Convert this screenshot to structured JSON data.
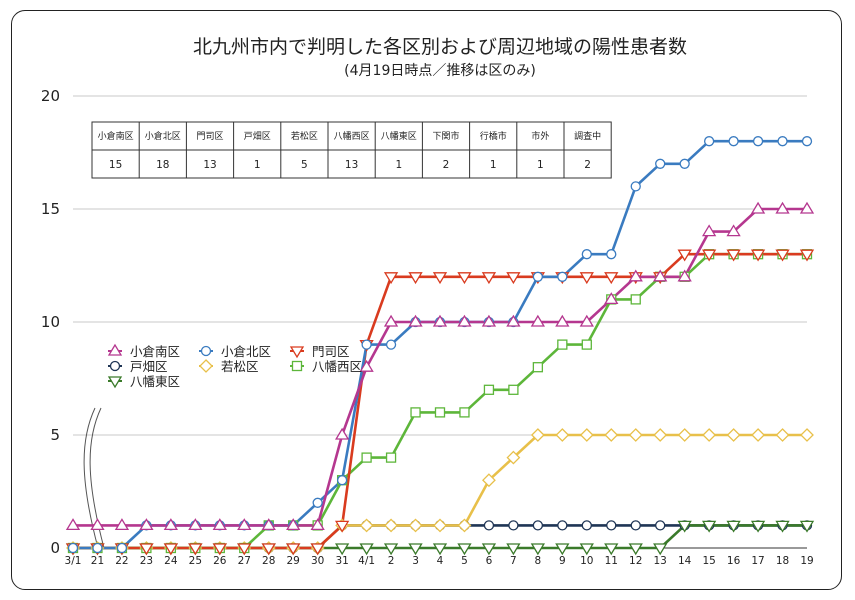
{
  "chart_data": {
    "type": "line",
    "title": "北九州市内で判明した各区別および周辺地域の陽性患者数",
    "subtitle": "(4月19日時点／推移は区のみ)",
    "xlabel": "",
    "ylabel": "",
    "ylim": [
      0,
      20
    ],
    "yticks": [
      "0",
      "5",
      "10",
      "15",
      "20"
    ],
    "x": [
      "3/1",
      "21",
      "22",
      "23",
      "24",
      "25",
      "26",
      "27",
      "28",
      "29",
      "30",
      "31",
      "4/1",
      "2",
      "3",
      "4",
      "5",
      "6",
      "7",
      "8",
      "9",
      "10",
      "11",
      "12",
      "13",
      "14",
      "15",
      "16",
      "17",
      "18",
      "19"
    ],
    "grid": true,
    "legend_position": "middle-left",
    "series": [
      {
        "name": "小倉南区",
        "color": "#b5378f",
        "marker": "triangle-up",
        "values": [
          1,
          1,
          1,
          1,
          1,
          1,
          1,
          1,
          1,
          1,
          1,
          5,
          8,
          10,
          10,
          10,
          10,
          10,
          10,
          10,
          10,
          10,
          11,
          12,
          12,
          12,
          14,
          14,
          15,
          15,
          15
        ]
      },
      {
        "name": "小倉北区",
        "color": "#3a7bc0",
        "marker": "circle",
        "values": [
          0,
          0,
          0,
          1,
          1,
          1,
          1,
          1,
          1,
          1,
          2,
          3,
          9,
          9,
          10,
          10,
          10,
          10,
          10,
          12,
          12,
          13,
          13,
          16,
          17,
          17,
          18,
          18,
          18,
          18,
          18
        ]
      },
      {
        "name": "門司区",
        "color": "#d93b1f",
        "marker": "triangle-down",
        "values": [
          0,
          0,
          0,
          0,
          0,
          0,
          0,
          0,
          0,
          0,
          0,
          1,
          9,
          12,
          12,
          12,
          12,
          12,
          12,
          12,
          12,
          12,
          12,
          12,
          12,
          13,
          13,
          13,
          13,
          13,
          13
        ]
      },
      {
        "name": "戸畑区",
        "color": "#1f3555",
        "marker": "circle",
        "values": [
          0,
          0,
          0,
          0,
          0,
          0,
          0,
          0,
          0,
          0,
          0,
          1,
          1,
          1,
          1,
          1,
          1,
          1,
          1,
          1,
          1,
          1,
          1,
          1,
          1,
          1,
          1,
          1,
          1,
          1,
          1
        ]
      },
      {
        "name": "若松区",
        "color": "#e8c04a",
        "marker": "diamond",
        "values": [
          0,
          0,
          0,
          0,
          0,
          0,
          0,
          0,
          0,
          0,
          0,
          1,
          1,
          1,
          1,
          1,
          1,
          3,
          4,
          5,
          5,
          5,
          5,
          5,
          5,
          5,
          5,
          5,
          5,
          5,
          5
        ]
      },
      {
        "name": "八幡西区",
        "color": "#5db63a",
        "marker": "square",
        "values": [
          0,
          0,
          0,
          0,
          0,
          0,
          0,
          0,
          1,
          1,
          1,
          3,
          4,
          4,
          6,
          6,
          6,
          7,
          7,
          8,
          9,
          9,
          11,
          11,
          12,
          12,
          13,
          13,
          13,
          13,
          13
        ]
      },
      {
        "name": "八幡東区",
        "color": "#3a7a2a",
        "marker": "triangle-down",
        "values": [
          0,
          0,
          0,
          0,
          0,
          0,
          0,
          0,
          0,
          0,
          0,
          0,
          0,
          0,
          0,
          0,
          0,
          0,
          0,
          0,
          0,
          0,
          0,
          0,
          0,
          1,
          1,
          1,
          1,
          1,
          1
        ]
      }
    ],
    "table": {
      "headers": [
        "小倉南区",
        "小倉北区",
        "門司区",
        "戸畑区",
        "若松区",
        "八幡西区",
        "八幡東区",
        "下関市",
        "行橋市",
        "市外",
        "調査中"
      ],
      "values": [
        "15",
        "18",
        "13",
        "1",
        "5",
        "13",
        "1",
        "2",
        "1",
        "1",
        "2"
      ]
    }
  }
}
